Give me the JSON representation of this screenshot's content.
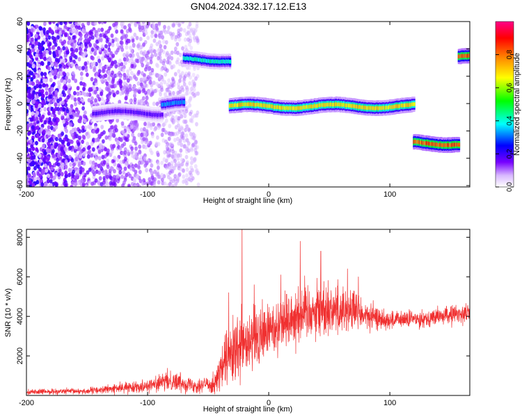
{
  "title": "GN04.2024.332.17.12.E13",
  "chart_data": [
    {
      "type": "heatmap",
      "xlabel": "Height of straight line (km)",
      "ylabel": "Frequency (Hz)",
      "xlim": [
        -200,
        166
      ],
      "ylim": [
        -61,
        60
      ],
      "x_ticks": [
        -200,
        -100,
        0,
        100
      ],
      "y_ticks": [
        -60,
        -40,
        -20,
        0,
        20,
        40,
        60
      ],
      "colorbar": {
        "label": "Normalized spectral amplitude",
        "range": [
          0,
          1
        ],
        "ticks": [
          0.0,
          0.2,
          0.4,
          0.6,
          0.8
        ],
        "tick_labels": [
          "0.0",
          "0.2",
          "0.4",
          "0.6",
          "0.8"
        ],
        "colors": [
          "#ffffff",
          "#d8b8ff",
          "#7700ff",
          "#0000ff",
          "#00ffff",
          "#00ff00",
          "#ffff00",
          "#ff8800",
          "#ff0000",
          "#ff0088"
        ]
      },
      "ridges": [
        {
          "x_start": -145,
          "x_end": -88,
          "freq": -7,
          "amplitude": 0.2
        },
        {
          "x_start": -88,
          "x_end": -70,
          "freq": 0,
          "amplitude": 0.35
        },
        {
          "x_start": -70,
          "x_end": -32,
          "freq": 32,
          "amplitude": 0.45
        },
        {
          "x_start": -32,
          "x_end": 120,
          "freq": -2,
          "amplitude": 0.75
        },
        {
          "x_start": 120,
          "x_end": 157,
          "freq": -29,
          "amplitude": 0.9
        },
        {
          "x_start": 157,
          "x_end": 166,
          "freq": 34,
          "amplitude": 0.9
        }
      ],
      "noise_region": {
        "x_start": -200,
        "x_end": -58,
        "freq_range": [
          -61,
          60
        ]
      }
    },
    {
      "type": "line",
      "xlabel": "Height of straight line (km)",
      "ylabel": "SNR (10 * v/v)",
      "xlim": [
        -200,
        166
      ],
      "ylim": [
        0,
        8400
      ],
      "x_ticks": [
        -200,
        -100,
        0,
        100
      ],
      "y_ticks": [
        2000,
        4000,
        6000,
        8000
      ],
      "color": "#f03030",
      "envelope": [
        {
          "x": -200,
          "mean": 180,
          "spread": 120
        },
        {
          "x": -150,
          "mean": 220,
          "spread": 150
        },
        {
          "x": -100,
          "mean": 500,
          "spread": 300
        },
        {
          "x": -80,
          "mean": 750,
          "spread": 500
        },
        {
          "x": -60,
          "mean": 500,
          "spread": 350
        },
        {
          "x": -45,
          "mean": 600,
          "spread": 500
        },
        {
          "x": -35,
          "mean": 1800,
          "spread": 1400
        },
        {
          "x": -20,
          "mean": 2400,
          "spread": 1800
        },
        {
          "x": 0,
          "mean": 3300,
          "spread": 1400
        },
        {
          "x": 25,
          "mean": 4200,
          "spread": 1500
        },
        {
          "x": 45,
          "mean": 4400,
          "spread": 1400
        },
        {
          "x": 70,
          "mean": 4300,
          "spread": 1100
        },
        {
          "x": 80,
          "mean": 4000,
          "spread": 700
        },
        {
          "x": 100,
          "mean": 3800,
          "spread": 450
        },
        {
          "x": 130,
          "mean": 3900,
          "spread": 400
        },
        {
          "x": 166,
          "mean": 4200,
          "spread": 500
        }
      ],
      "peaks": [
        {
          "x": -22,
          "y": 8400
        },
        {
          "x": 26,
          "y": 7800
        },
        {
          "x": 43,
          "y": 7300
        },
        {
          "x": 65,
          "y": 6400
        },
        {
          "x": 74,
          "y": 6000
        },
        {
          "x": -33,
          "y": 5200
        },
        {
          "x": -12,
          "y": 5600
        },
        {
          "x": 10,
          "y": 6100
        }
      ]
    }
  ]
}
